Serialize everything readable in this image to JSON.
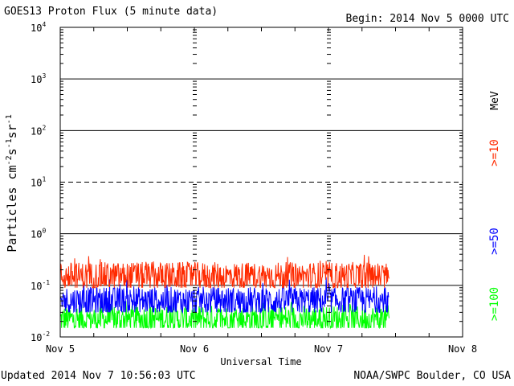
{
  "header": {
    "title": "GOES13 Proton Flux (5 minute data)",
    "begin": "Begin: 2014 Nov 5 0000 UTC"
  },
  "footer": {
    "updated": "Updated 2014 Nov  7 10:56:03 UTC",
    "credit": "NOAA/SWPC Boulder, CO USA"
  },
  "colors": {
    "ge10": "#ff2a00",
    "ge50": "#0000ff",
    "ge100": "#00ff00"
  },
  "chart_data": {
    "type": "line",
    "title": "GOES13 Proton Flux (5 minute data)",
    "xlabel": "Universal Time",
    "ylabel": "Particles cm⁻²s⁻¹sr⁻¹",
    "y_scale": "log",
    "ylim": [
      0.01,
      10000
    ],
    "y_ticks": [
      {
        "value": 0.01,
        "base": "10",
        "exp": "-2"
      },
      {
        "value": 0.1,
        "base": "10",
        "exp": "-1"
      },
      {
        "value": 1,
        "base": "10",
        "exp": "0"
      },
      {
        "value": 10,
        "base": "10",
        "exp": "1"
      },
      {
        "value": 100,
        "base": "10",
        "exp": "2"
      },
      {
        "value": 1000,
        "base": "10",
        "exp": "3"
      },
      {
        "value": 10000,
        "base": "10",
        "exp": "4"
      }
    ],
    "dashed_gridline": 10,
    "x_ticks": [
      {
        "value": "2014-11-05 00:00",
        "label": "Nov 5"
      },
      {
        "value": "2014-11-06 00:00",
        "label": "Nov 6"
      },
      {
        "value": "2014-11-07 00:00",
        "label": "Nov 7"
      },
      {
        "value": "2014-11-08 00:00",
        "label": "Nov 8"
      }
    ],
    "x_range": [
      "2014-11-05 00:00",
      "2014-11-08 00:00"
    ],
    "data_end": "2014-11-07 10:50",
    "legend_placement": "right side, rotated",
    "legend_units": "MeV",
    "series": [
      {
        "name": ">=10",
        "color": "#ff2a00",
        "typical_value": 0.15,
        "range": [
          0.09,
          0.4
        ]
      },
      {
        "name": ">=50",
        "color": "#0000ff",
        "typical_value": 0.05,
        "range": [
          0.03,
          0.15
        ]
      },
      {
        "name": ">=100",
        "color": "#00ff00",
        "typical_value": 0.022,
        "range": [
          0.015,
          0.05
        ]
      }
    ]
  }
}
